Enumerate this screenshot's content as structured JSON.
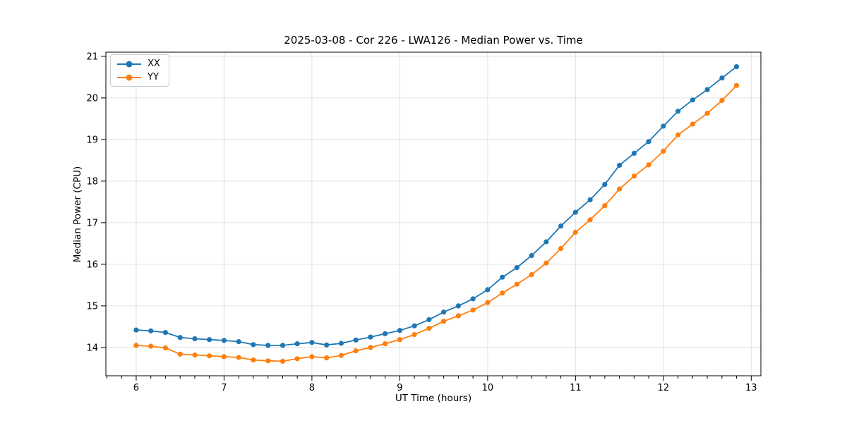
{
  "chart_data": {
    "type": "line",
    "title": "2025-03-08 - Cor 226 - LWA126 - Median Power vs. Time",
    "xlabel": "UT Time (hours)",
    "ylabel": "Median Power (CPU)",
    "xlim": [
      5.655,
      13.11
    ],
    "ylim": [
      13.32,
      21.1
    ],
    "xticks": [
      6,
      7,
      8,
      9,
      10,
      11,
      12,
      13
    ],
    "yticks": [
      14,
      15,
      16,
      17,
      18,
      19,
      20,
      21
    ],
    "x_minor_tick_step": 0.166667,
    "grid": true,
    "grid_color": "#e0e0e0",
    "spine_color": "#000000",
    "legend_position": "upper-left",
    "x": [
      6.0,
      6.167,
      6.333,
      6.5,
      6.667,
      6.833,
      7.0,
      7.167,
      7.333,
      7.5,
      7.667,
      7.833,
      8.0,
      8.167,
      8.333,
      8.5,
      8.667,
      8.833,
      9.0,
      9.167,
      9.333,
      9.5,
      9.667,
      9.833,
      10.0,
      10.167,
      10.333,
      10.5,
      10.667,
      10.833,
      11.0,
      11.167,
      11.333,
      11.5,
      11.667,
      11.833,
      12.0,
      12.167,
      12.333,
      12.5,
      12.667,
      12.833
    ],
    "series": [
      {
        "name": "XX",
        "color": "#1f77b4",
        "values": [
          14.42,
          14.4,
          14.36,
          14.24,
          14.21,
          14.19,
          14.17,
          14.14,
          14.07,
          14.05,
          14.05,
          14.09,
          14.12,
          14.06,
          14.1,
          14.18,
          14.25,
          14.33,
          14.41,
          14.52,
          14.67,
          14.85,
          15.0,
          15.17,
          15.39,
          15.69,
          15.92,
          16.21,
          16.54,
          16.92,
          17.25,
          17.55,
          17.92,
          18.38,
          18.67,
          18.95,
          19.32,
          19.68,
          19.95,
          20.2,
          20.48,
          20.75
        ]
      },
      {
        "name": "YY",
        "color": "#ff7f0e",
        "values": [
          14.05,
          14.03,
          13.99,
          13.84,
          13.82,
          13.8,
          13.78,
          13.76,
          13.7,
          13.68,
          13.67,
          13.73,
          13.78,
          13.75,
          13.81,
          13.92,
          14.0,
          14.09,
          14.19,
          14.31,
          14.46,
          14.63,
          14.76,
          14.9,
          15.08,
          15.31,
          15.52,
          15.75,
          16.03,
          16.38,
          16.77,
          17.07,
          17.41,
          17.81,
          18.12,
          18.39,
          18.72,
          19.11,
          19.37,
          19.63,
          19.94,
          20.3
        ]
      }
    ]
  }
}
